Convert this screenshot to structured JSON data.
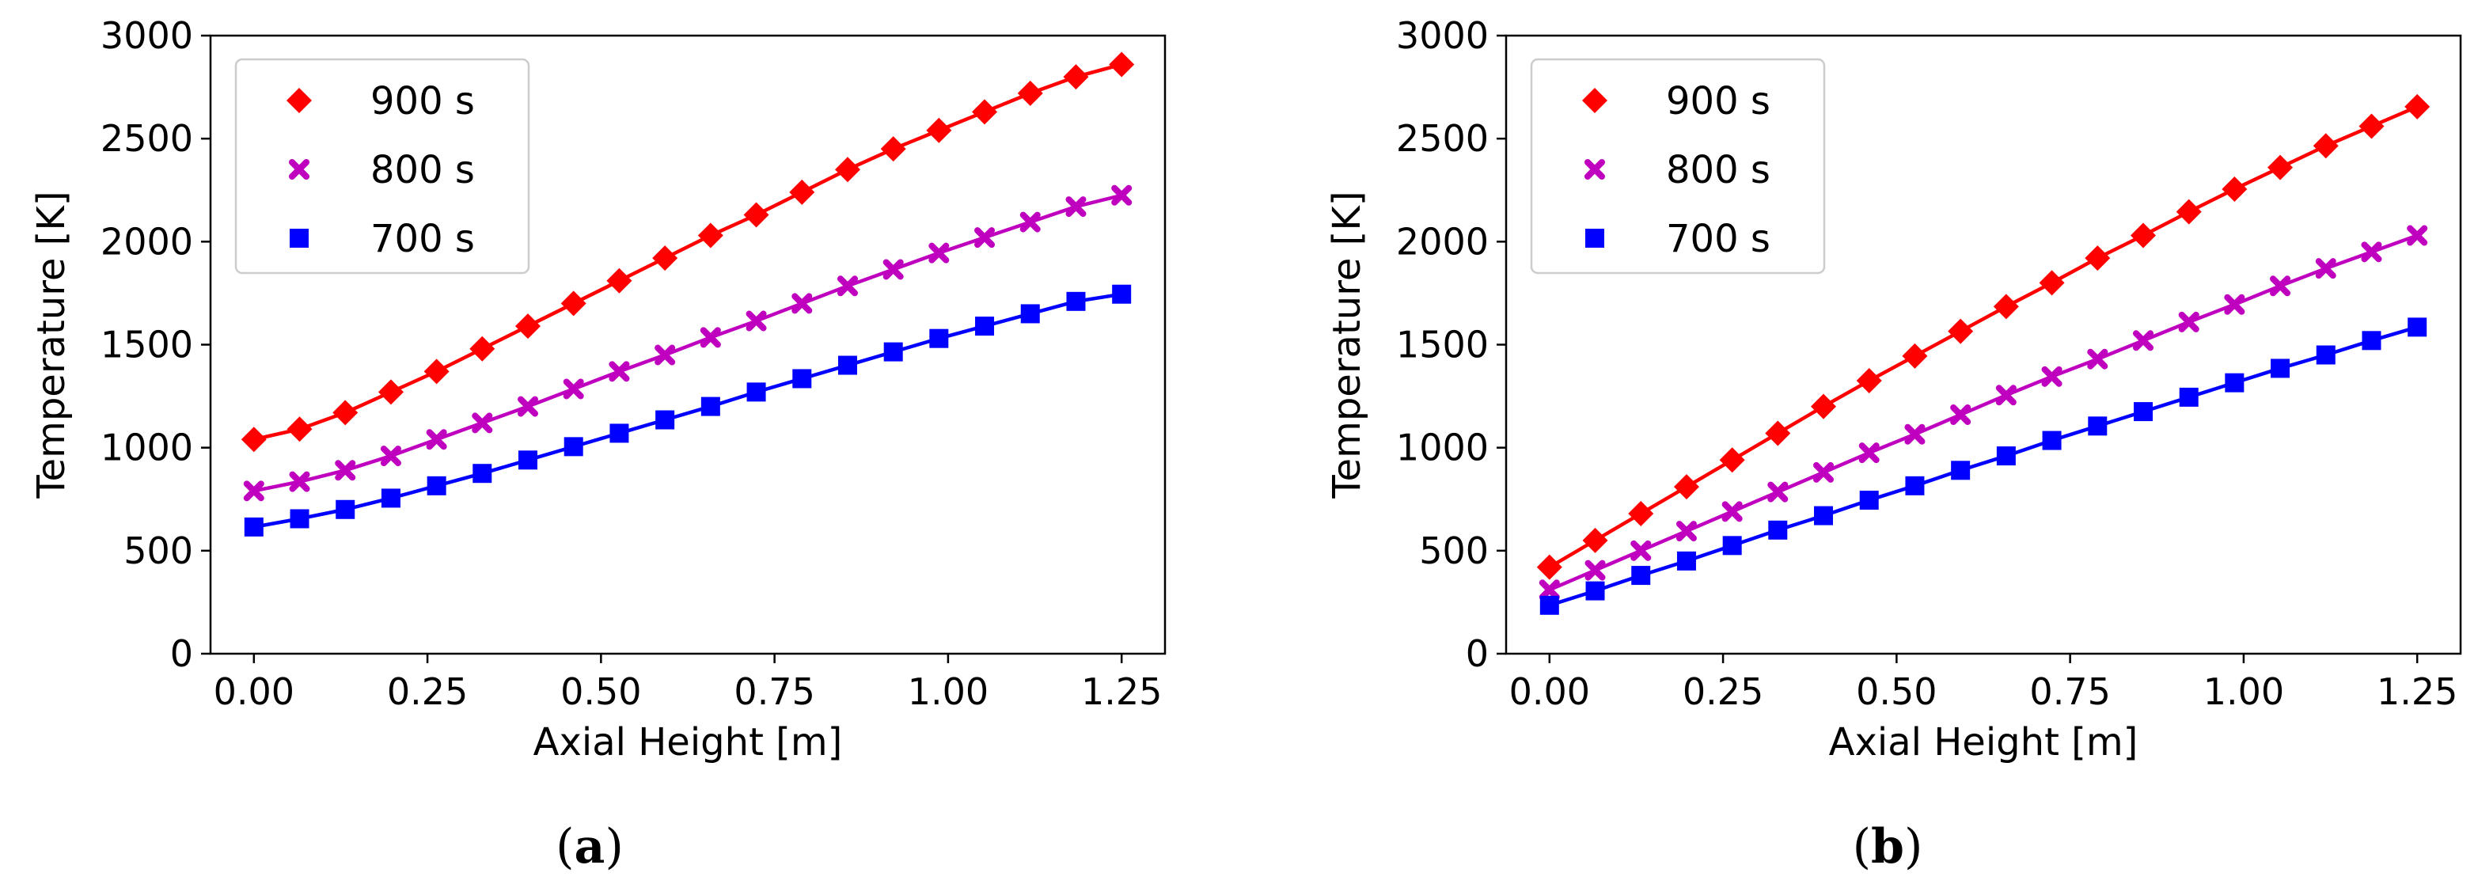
{
  "chart_data": [
    {
      "type": "line",
      "caption": "a",
      "xlabel": "Axial Height [m]",
      "ylabel": "Temperature [K]",
      "xlim": [
        -0.0625,
        1.3125
      ],
      "ylim": [
        0,
        3000
      ],
      "xticks": [
        "0.00",
        "0.25",
        "0.50",
        "0.75",
        "1.00",
        "1.25"
      ],
      "yticks": [
        "0",
        "500",
        "1000",
        "1500",
        "2000",
        "2500",
        "3000"
      ],
      "legend_position": "top-left",
      "x": [
        0.0,
        0.0658,
        0.1316,
        0.1974,
        0.2632,
        0.3289,
        0.3947,
        0.4605,
        0.5263,
        0.5921,
        0.6579,
        0.7237,
        0.7895,
        0.8553,
        0.9211,
        0.9868,
        1.0526,
        1.1184,
        1.1842,
        1.25
      ],
      "series": [
        {
          "name": "900 s",
          "color": "#ff0000",
          "marker": "diamond",
          "values": [
            1040,
            1090,
            1170,
            1270,
            1370,
            1480,
            1590,
            1700,
            1810,
            1920,
            2030,
            2130,
            2240,
            2350,
            2450,
            2540,
            2630,
            2720,
            2800,
            2860
          ]
        },
        {
          "name": "800 s",
          "color": "#bf00bf",
          "marker": "x",
          "values": [
            790,
            835,
            890,
            960,
            1040,
            1120,
            1200,
            1285,
            1370,
            1450,
            1535,
            1615,
            1700,
            1785,
            1865,
            1945,
            2020,
            2095,
            2170,
            2225
          ]
        },
        {
          "name": "700 s",
          "color": "#0000ff",
          "marker": "square",
          "values": [
            615,
            655,
            700,
            755,
            815,
            875,
            940,
            1005,
            1070,
            1135,
            1200,
            1270,
            1335,
            1400,
            1465,
            1530,
            1590,
            1650,
            1710,
            1745
          ]
        }
      ]
    },
    {
      "type": "line",
      "caption": "b",
      "xlabel": "Axial Height [m]",
      "ylabel": "Temperature [K]",
      "xlim": [
        -0.0625,
        1.3125
      ],
      "ylim": [
        0,
        3000
      ],
      "xticks": [
        "0.00",
        "0.25",
        "0.50",
        "0.75",
        "1.00",
        "1.25"
      ],
      "yticks": [
        "0",
        "500",
        "1000",
        "1500",
        "2000",
        "2500",
        "3000"
      ],
      "legend_position": "top-left",
      "x": [
        0.0,
        0.0658,
        0.1316,
        0.1974,
        0.2632,
        0.3289,
        0.3947,
        0.4605,
        0.5263,
        0.5921,
        0.6579,
        0.7237,
        0.7895,
        0.8553,
        0.9211,
        0.9868,
        1.0526,
        1.1184,
        1.1842,
        1.25
      ],
      "series": [
        {
          "name": "900 s",
          "color": "#ff0000",
          "marker": "diamond",
          "values": [
            420,
            550,
            680,
            810,
            940,
            1070,
            1200,
            1325,
            1445,
            1565,
            1685,
            1800,
            1920,
            2030,
            2145,
            2255,
            2360,
            2465,
            2560,
            2655
          ]
        },
        {
          "name": "800 s",
          "color": "#bf00bf",
          "marker": "x",
          "values": [
            310,
            405,
            500,
            595,
            690,
            785,
            880,
            975,
            1065,
            1160,
            1255,
            1345,
            1430,
            1520,
            1610,
            1695,
            1785,
            1870,
            1950,
            2030
          ]
        },
        {
          "name": "700 s",
          "color": "#0000ff",
          "marker": "square",
          "values": [
            235,
            305,
            380,
            450,
            525,
            600,
            670,
            745,
            815,
            890,
            960,
            1035,
            1105,
            1175,
            1245,
            1315,
            1385,
            1450,
            1520,
            1585
          ]
        }
      ]
    }
  ]
}
